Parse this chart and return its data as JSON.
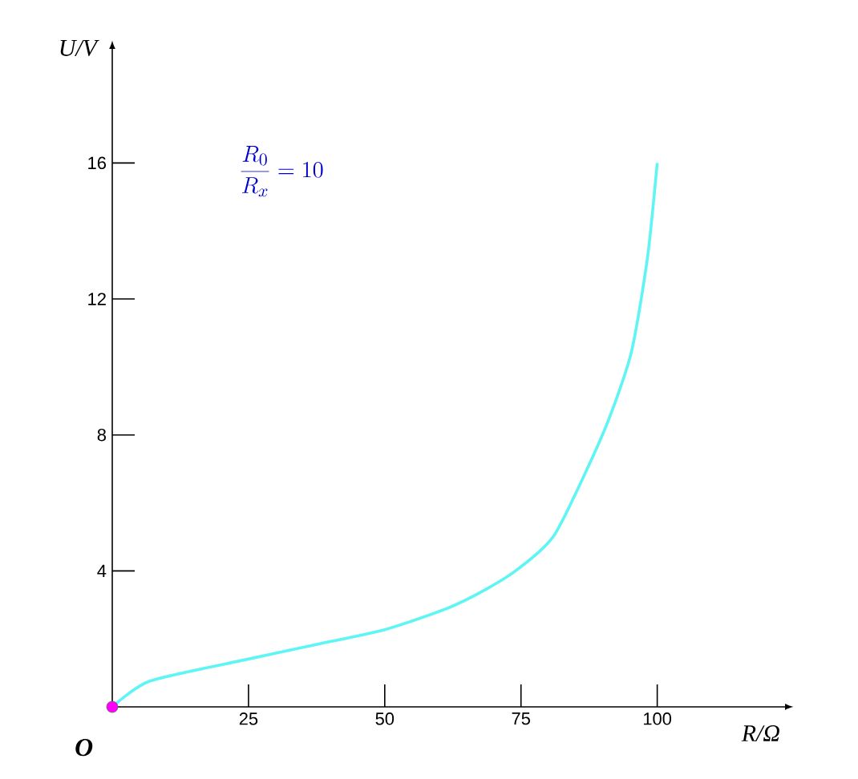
{
  "chart_data": {
    "type": "line",
    "xlabel": "R/Ω",
    "ylabel": "U/V",
    "xlim": [
      0,
      123.6
    ],
    "ylim": [
      0,
      19.38
    ],
    "xticks": [
      25,
      50,
      75,
      100
    ],
    "yticks": [
      4,
      8,
      12,
      16
    ],
    "grid": false,
    "series": [
      {
        "color": "#5ff5f5",
        "marker": "none",
        "x": [
          0,
          6.9,
          24.8,
          36.7,
          50,
          61.5,
          68.5,
          74.4,
          81.3,
          90.2,
          95.2,
          98.2,
          100
        ],
        "values": [
          0,
          0.76,
          1.4,
          1.81,
          2.27,
          2.9,
          3.45,
          4.05,
          5.1,
          8.1,
          10.4,
          13.2,
          16
        ]
      },
      {
        "type": "scatter",
        "color": "#ff00ff",
        "marker": "circle",
        "x": [
          0
        ],
        "values": [
          0
        ]
      }
    ],
    "annotations": [
      "\\frac{R_0}{R_x}=10",
      "O"
    ]
  }
}
